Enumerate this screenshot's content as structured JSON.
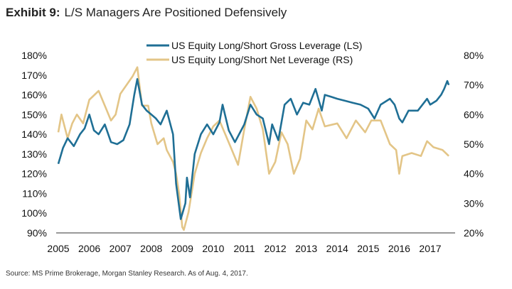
{
  "title": {
    "label": "Exhibit 9:",
    "text": "L/S Managers Are Positioned Defensively"
  },
  "source": "Source: MS Prime Brokerage, Morgan Stanley Research. As of Aug. 4, 2017.",
  "chart_data": {
    "type": "line",
    "title": "L/S Managers Are Positioned Defensively",
    "xlim": [
      2005,
      2017.6
    ],
    "x_ticks": [
      "2005",
      "2006",
      "2007",
      "2008",
      "2009",
      "2010",
      "2011",
      "2012",
      "2013",
      "2014",
      "2015",
      "2016",
      "2017"
    ],
    "y_left": {
      "range": [
        90,
        180
      ],
      "ticks": [
        "90%",
        "100%",
        "110%",
        "120%",
        "130%",
        "140%",
        "150%",
        "160%",
        "170%",
        "180%"
      ]
    },
    "y_right": {
      "range": [
        20,
        80
      ],
      "ticks": [
        "20%",
        "30%",
        "40%",
        "50%",
        "60%",
        "70%",
        "80%"
      ]
    },
    "grid": false,
    "legend_placement": "top-center",
    "series": [
      {
        "name": "US Equity Long/Short Gross Leverage (LS)",
        "axis": "left",
        "color": "#1f6f95",
        "x": [
          2005.0,
          2005.15,
          2005.3,
          2005.5,
          2005.7,
          2005.85,
          2006.0,
          2006.15,
          2006.3,
          2006.5,
          2006.7,
          2006.9,
          2007.1,
          2007.3,
          2007.45,
          2007.55,
          2007.7,
          2007.85,
          2008.0,
          2008.15,
          2008.3,
          2008.5,
          2008.7,
          2008.8,
          2008.95,
          2009.1,
          2009.15,
          2009.25,
          2009.4,
          2009.6,
          2009.8,
          2010.0,
          2010.2,
          2010.3,
          2010.5,
          2010.7,
          2010.9,
          2011.0,
          2011.2,
          2011.4,
          2011.6,
          2011.8,
          2011.9,
          2012.1,
          2012.3,
          2012.5,
          2012.7,
          2012.9,
          2013.1,
          2013.3,
          2013.5,
          2013.6,
          2013.8,
          2014.0,
          2014.25,
          2014.5,
          2014.75,
          2015.0,
          2015.2,
          2015.4,
          2015.7,
          2015.85,
          2016.0,
          2016.1,
          2016.3,
          2016.6,
          2016.9,
          2017.0,
          2017.2,
          2017.35,
          2017.45,
          2017.55,
          2017.6
        ],
        "values": [
          125,
          133,
          138,
          134,
          140,
          143,
          150,
          142,
          140,
          145,
          136,
          135,
          137,
          145,
          160,
          168,
          155,
          152,
          150,
          148,
          145,
          152,
          140,
          115,
          97,
          105,
          118,
          108,
          130,
          140,
          145,
          140,
          146,
          155,
          142,
          136,
          142,
          145,
          155,
          150,
          148,
          135,
          145,
          137,
          155,
          158,
          150,
          156,
          155,
          163,
          152,
          160,
          159,
          158,
          157,
          156,
          155,
          153,
          148,
          155,
          158,
          155,
          148,
          146,
          152,
          152,
          158,
          155,
          157,
          160,
          163,
          167,
          165
        ]
      },
      {
        "name": "US Equity Long/Short Net Leverage (RS)",
        "axis": "right",
        "color": "#e3c587",
        "x": [
          2005.0,
          2005.1,
          2005.3,
          2005.45,
          2005.6,
          2005.8,
          2006.0,
          2006.3,
          2006.5,
          2006.7,
          2006.85,
          2007.0,
          2007.2,
          2007.4,
          2007.55,
          2007.7,
          2007.9,
          2008.0,
          2008.2,
          2008.4,
          2008.5,
          2008.7,
          2008.8,
          2008.9,
          2009.0,
          2009.05,
          2009.2,
          2009.4,
          2009.6,
          2009.8,
          2010.0,
          2010.2,
          2010.4,
          2010.6,
          2010.8,
          2011.0,
          2011.2,
          2011.4,
          2011.6,
          2011.8,
          2012.0,
          2012.2,
          2012.4,
          2012.6,
          2012.8,
          2013.0,
          2013.2,
          2013.4,
          2013.6,
          2014.0,
          2014.3,
          2014.6,
          2014.9,
          2015.1,
          2015.4,
          2015.7,
          2015.9,
          2016.0,
          2016.1,
          2016.4,
          2016.7,
          2016.9,
          2017.1,
          2017.4,
          2017.6
        ],
        "values": [
          54,
          60,
          52,
          57,
          60,
          57,
          65,
          68,
          63,
          58,
          60,
          67,
          70,
          73,
          76,
          63,
          63,
          57,
          50,
          52,
          48,
          44,
          40,
          33,
          22,
          21,
          27,
          40,
          47,
          52,
          56,
          58,
          53,
          48,
          43,
          55,
          66,
          62,
          55,
          40,
          44,
          54,
          50,
          40,
          45,
          58,
          55,
          62,
          56,
          57,
          52,
          58,
          54,
          58,
          58,
          50,
          48,
          40,
          46,
          47,
          46,
          51,
          49,
          48,
          46
        ]
      }
    ]
  }
}
